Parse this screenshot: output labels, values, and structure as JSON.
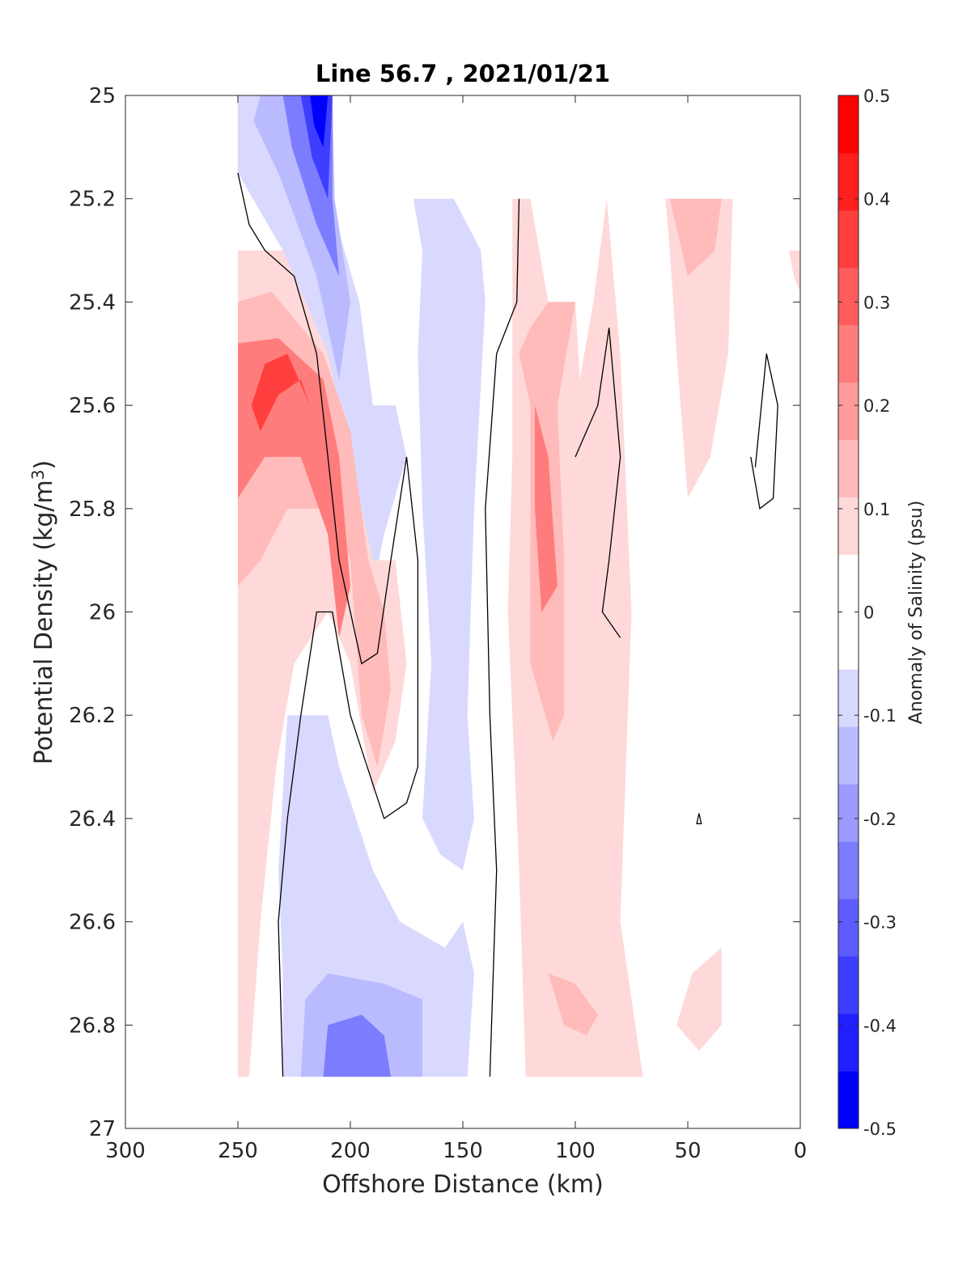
{
  "chart_data": {
    "type": "heatmap",
    "title": "Line 56.7 , 2021/01/21",
    "xlabel": "Offshore Distance (km)",
    "ylabel": "Potential Density (kg/m",
    "ylabel_sup": "3",
    "ylabel_end": ")",
    "xlim": [
      300,
      0
    ],
    "ylim": [
      25,
      27
    ],
    "x_ticks": [
      300,
      250,
      200,
      150,
      100,
      50,
      0
    ],
    "y_ticks": [
      25,
      25.2,
      25.4,
      25.6,
      25.8,
      26,
      26.2,
      26.4,
      26.6,
      26.8,
      27
    ],
    "x_tick_labels": [
      "300",
      "250",
      "200",
      "150",
      "100",
      "50",
      "0"
    ],
    "y_tick_labels": [
      "25",
      "25.2",
      "25.4",
      "25.6",
      "25.8",
      "26",
      "26.2",
      "26.4",
      "26.6",
      "26.8",
      "27"
    ],
    "colorbar": {
      "label": "Anomaly of Salinity (psu)",
      "range": [
        -0.5,
        0.5
      ],
      "ticks": [
        0.5,
        0.4,
        0.3,
        0.2,
        0.1,
        0,
        -0.1,
        -0.2,
        -0.3,
        -0.4,
        -0.5
      ],
      "tick_labels": [
        "0.5",
        "0.4",
        "0.3",
        "0.2",
        "0.1",
        "0",
        "-0.1",
        "-0.2",
        "-0.3",
        "-0.4",
        "-0.5"
      ],
      "levels": [
        -0.45,
        -0.35,
        -0.25,
        -0.15,
        -0.075,
        0.075,
        0.15,
        0.25,
        0.35,
        0.45
      ],
      "colors": [
        "#0000ff",
        "#1f1fff",
        "#3e3eff",
        "#5d5dff",
        "#7c7cff",
        "#9b9bff",
        "#babaff",
        "#d9d9ff",
        "#ffffff",
        "#ffffff",
        "#ffd9d9",
        "#ffbaba",
        "#ff9b9b",
        "#ff7c7c",
        "#ff5d5d",
        "#ff3e3e",
        "#ff1f1f",
        "#ff0000"
      ]
    },
    "regions": [
      {
        "level": -0.075,
        "points": [
          [
            250,
            25.0
          ],
          [
            208,
            25.0
          ],
          [
            208,
            25.22
          ],
          [
            196,
            25.4
          ],
          [
            190,
            25.6
          ],
          [
            180,
            25.6
          ],
          [
            175,
            25.7
          ],
          [
            185,
            25.85
          ],
          [
            192,
            26.0
          ],
          [
            200,
            25.8
          ],
          [
            210,
            25.5
          ],
          [
            230,
            25.3
          ],
          [
            250,
            25.15
          ]
        ]
      },
      {
        "level": -0.15,
        "points": [
          [
            240,
            25.0
          ],
          [
            208,
            25.0
          ],
          [
            207,
            25.2
          ],
          [
            200,
            25.4
          ],
          [
            205,
            25.55
          ],
          [
            215,
            25.35
          ],
          [
            232,
            25.15
          ],
          [
            243,
            25.05
          ]
        ]
      },
      {
        "level": -0.25,
        "points": [
          [
            230,
            25.0
          ],
          [
            208,
            25.0
          ],
          [
            208,
            25.2
          ],
          [
            205,
            25.35
          ],
          [
            215,
            25.25
          ],
          [
            226,
            25.1
          ]
        ]
      },
      {
        "level": -0.35,
        "points": [
          [
            222,
            25.0
          ],
          [
            208,
            25.0
          ],
          [
            210,
            25.2
          ],
          [
            217,
            25.12
          ]
        ]
      },
      {
        "level": -0.45,
        "points": [
          [
            218,
            25.0
          ],
          [
            210,
            25.0
          ],
          [
            212,
            25.1
          ],
          [
            216,
            25.06
          ]
        ]
      },
      {
        "level": -0.075,
        "points": [
          [
            172,
            25.2
          ],
          [
            154,
            25.2
          ],
          [
            142,
            25.3
          ],
          [
            140,
            25.4
          ],
          [
            145,
            25.8
          ],
          [
            148,
            26.2
          ],
          [
            145,
            26.4
          ],
          [
            150,
            26.5
          ],
          [
            160,
            26.47
          ],
          [
            168,
            26.4
          ],
          [
            164,
            26.1
          ],
          [
            168,
            25.8
          ],
          [
            170,
            25.5
          ],
          [
            168,
            25.3
          ]
        ]
      },
      {
        "level": -0.075,
        "points": [
          [
            228,
            26.2
          ],
          [
            210,
            26.2
          ],
          [
            205,
            26.3
          ],
          [
            190,
            26.5
          ],
          [
            178,
            26.6
          ],
          [
            158,
            26.65
          ],
          [
            150,
            26.6
          ],
          [
            145,
            26.7
          ],
          [
            148,
            26.9
          ],
          [
            230,
            26.9
          ],
          [
            230,
            26.7
          ],
          [
            232,
            26.5
          ]
        ]
      },
      {
        "level": -0.15,
        "points": [
          [
            220,
            26.75
          ],
          [
            210,
            26.7
          ],
          [
            185,
            26.72
          ],
          [
            168,
            26.75
          ],
          [
            168,
            26.9
          ],
          [
            222,
            26.9
          ]
        ]
      },
      {
        "level": -0.25,
        "points": [
          [
            210,
            26.8
          ],
          [
            195,
            26.78
          ],
          [
            185,
            26.82
          ],
          [
            182,
            26.9
          ],
          [
            212,
            26.9
          ]
        ]
      },
      {
        "level": 0.075,
        "points": [
          [
            250,
            25.3
          ],
          [
            250,
            26.9
          ],
          [
            245,
            26.9
          ],
          [
            240,
            26.6
          ],
          [
            233,
            26.3
          ],
          [
            225,
            26.1
          ],
          [
            210,
            26.0
          ],
          [
            200,
            26.1
          ],
          [
            190,
            26.35
          ],
          [
            180,
            26.25
          ],
          [
            175,
            26.1
          ],
          [
            180,
            25.9
          ],
          [
            190,
            25.9
          ],
          [
            200,
            25.7
          ],
          [
            210,
            25.5
          ],
          [
            230,
            25.3
          ]
        ]
      },
      {
        "level": 0.15,
        "points": [
          [
            250,
            25.4
          ],
          [
            250,
            25.95
          ],
          [
            240,
            25.9
          ],
          [
            228,
            25.8
          ],
          [
            210,
            25.8
          ],
          [
            200,
            25.9
          ],
          [
            195,
            26.2
          ],
          [
            188,
            26.3
          ],
          [
            182,
            26.15
          ],
          [
            185,
            26.0
          ],
          [
            192,
            25.9
          ],
          [
            200,
            25.65
          ],
          [
            212,
            25.5
          ],
          [
            235,
            25.38
          ]
        ]
      },
      {
        "level": 0.25,
        "points": [
          [
            250,
            25.48
          ],
          [
            250,
            25.78
          ],
          [
            238,
            25.7
          ],
          [
            222,
            25.7
          ],
          [
            210,
            25.85
          ],
          [
            205,
            26.05
          ],
          [
            200,
            25.95
          ],
          [
            205,
            25.7
          ],
          [
            212,
            25.55
          ],
          [
            232,
            25.47
          ]
        ]
      },
      {
        "level": 0.35,
        "points": [
          [
            244,
            25.6
          ],
          [
            240,
            25.65
          ],
          [
            232,
            25.58
          ],
          [
            222,
            25.55
          ],
          [
            218,
            25.6
          ],
          [
            228,
            25.5
          ],
          [
            238,
            25.52
          ]
        ]
      },
      {
        "level": 0.075,
        "points": [
          [
            128,
            25.2
          ],
          [
            120,
            25.2
          ],
          [
            112,
            25.4
          ],
          [
            100,
            25.4
          ],
          [
            98,
            25.55
          ],
          [
            92,
            25.4
          ],
          [
            86,
            25.2
          ],
          [
            80,
            25.5
          ],
          [
            75,
            26.0
          ],
          [
            80,
            26.6
          ],
          [
            70,
            26.9
          ],
          [
            122,
            26.9
          ],
          [
            125,
            26.5
          ],
          [
            130,
            26.0
          ],
          [
            128,
            25.7
          ]
        ]
      },
      {
        "level": 0.15,
        "points": [
          [
            125,
            25.5
          ],
          [
            120,
            25.6
          ],
          [
            120,
            26.1
          ],
          [
            110,
            26.25
          ],
          [
            105,
            26.2
          ],
          [
            105,
            25.9
          ],
          [
            108,
            25.6
          ],
          [
            100,
            25.4
          ],
          [
            112,
            25.4
          ],
          [
            120,
            25.45
          ]
        ]
      },
      {
        "level": 0.25,
        "points": [
          [
            118,
            25.6
          ],
          [
            112,
            25.7
          ],
          [
            108,
            25.95
          ],
          [
            115,
            26.0
          ],
          [
            118,
            25.8
          ]
        ]
      },
      {
        "level": 0.15,
        "points": [
          [
            112,
            26.7
          ],
          [
            105,
            26.8
          ],
          [
            95,
            26.82
          ],
          [
            90,
            26.78
          ],
          [
            100,
            26.72
          ]
        ]
      },
      {
        "level": 0.075,
        "points": [
          [
            60,
            25.2
          ],
          [
            30,
            25.2
          ],
          [
            32,
            25.5
          ],
          [
            40,
            25.7
          ],
          [
            50,
            25.78
          ],
          [
            55,
            25.5
          ],
          [
            58,
            25.3
          ]
        ]
      },
      {
        "level": 0.15,
        "points": [
          [
            58,
            25.2
          ],
          [
            35,
            25.2
          ],
          [
            38,
            25.3
          ],
          [
            50,
            25.35
          ]
        ]
      },
      {
        "level": 0.075,
        "points": [
          [
            55,
            26.8
          ],
          [
            48,
            26.7
          ],
          [
            35,
            26.65
          ],
          [
            35,
            26.8
          ],
          [
            45,
            26.85
          ]
        ]
      },
      {
        "level": 0.075,
        "points": [
          [
            5,
            25.3
          ],
          [
            0,
            25.3
          ],
          [
            0,
            25.38
          ],
          [
            3,
            25.35
          ]
        ]
      },
      {
        "level": 0.075,
        "points": [
          [
            250,
            26.5
          ],
          [
            248,
            26.55
          ],
          [
            250,
            26.45
          ]
        ]
      }
    ],
    "contours_zero": [
      [
        [
          250,
          25.15
        ],
        [
          245,
          25.25
        ],
        [
          238,
          25.3
        ],
        [
          225,
          25.35
        ],
        [
          215,
          25.5
        ],
        [
          205,
          25.9
        ],
        [
          195,
          26.1
        ],
        [
          188,
          26.08
        ],
        [
          182,
          25.9
        ],
        [
          175,
          25.7
        ],
        [
          170,
          25.9
        ],
        [
          170,
          26.3
        ],
        [
          175,
          26.37
        ],
        [
          185,
          26.4
        ],
        [
          200,
          26.2
        ],
        [
          208,
          26.0
        ],
        [
          215,
          26.0
        ],
        [
          222,
          26.2
        ],
        [
          228,
          26.4
        ],
        [
          232,
          26.6
        ],
        [
          230,
          26.9
        ]
      ],
      [
        [
          125,
          25.2
        ],
        [
          126,
          25.4
        ],
        [
          135,
          25.5
        ],
        [
          140,
          25.8
        ],
        [
          138,
          26.2
        ],
        [
          135,
          26.5
        ],
        [
          138,
          26.9
        ]
      ],
      [
        [
          100,
          25.7
        ],
        [
          90,
          25.6
        ],
        [
          85,
          25.45
        ],
        [
          80,
          25.7
        ],
        [
          85,
          25.9
        ],
        [
          88,
          26.0
        ],
        [
          80,
          26.05
        ]
      ],
      [
        [
          20,
          25.72
        ],
        [
          15,
          25.5
        ],
        [
          10,
          25.6
        ],
        [
          12,
          25.78
        ],
        [
          18,
          25.8
        ],
        [
          22,
          25.7
        ]
      ],
      [
        [
          45,
          26.39
        ],
        [
          44,
          26.41
        ],
        [
          46,
          26.41
        ],
        [
          45,
          26.39
        ]
      ]
    ]
  }
}
